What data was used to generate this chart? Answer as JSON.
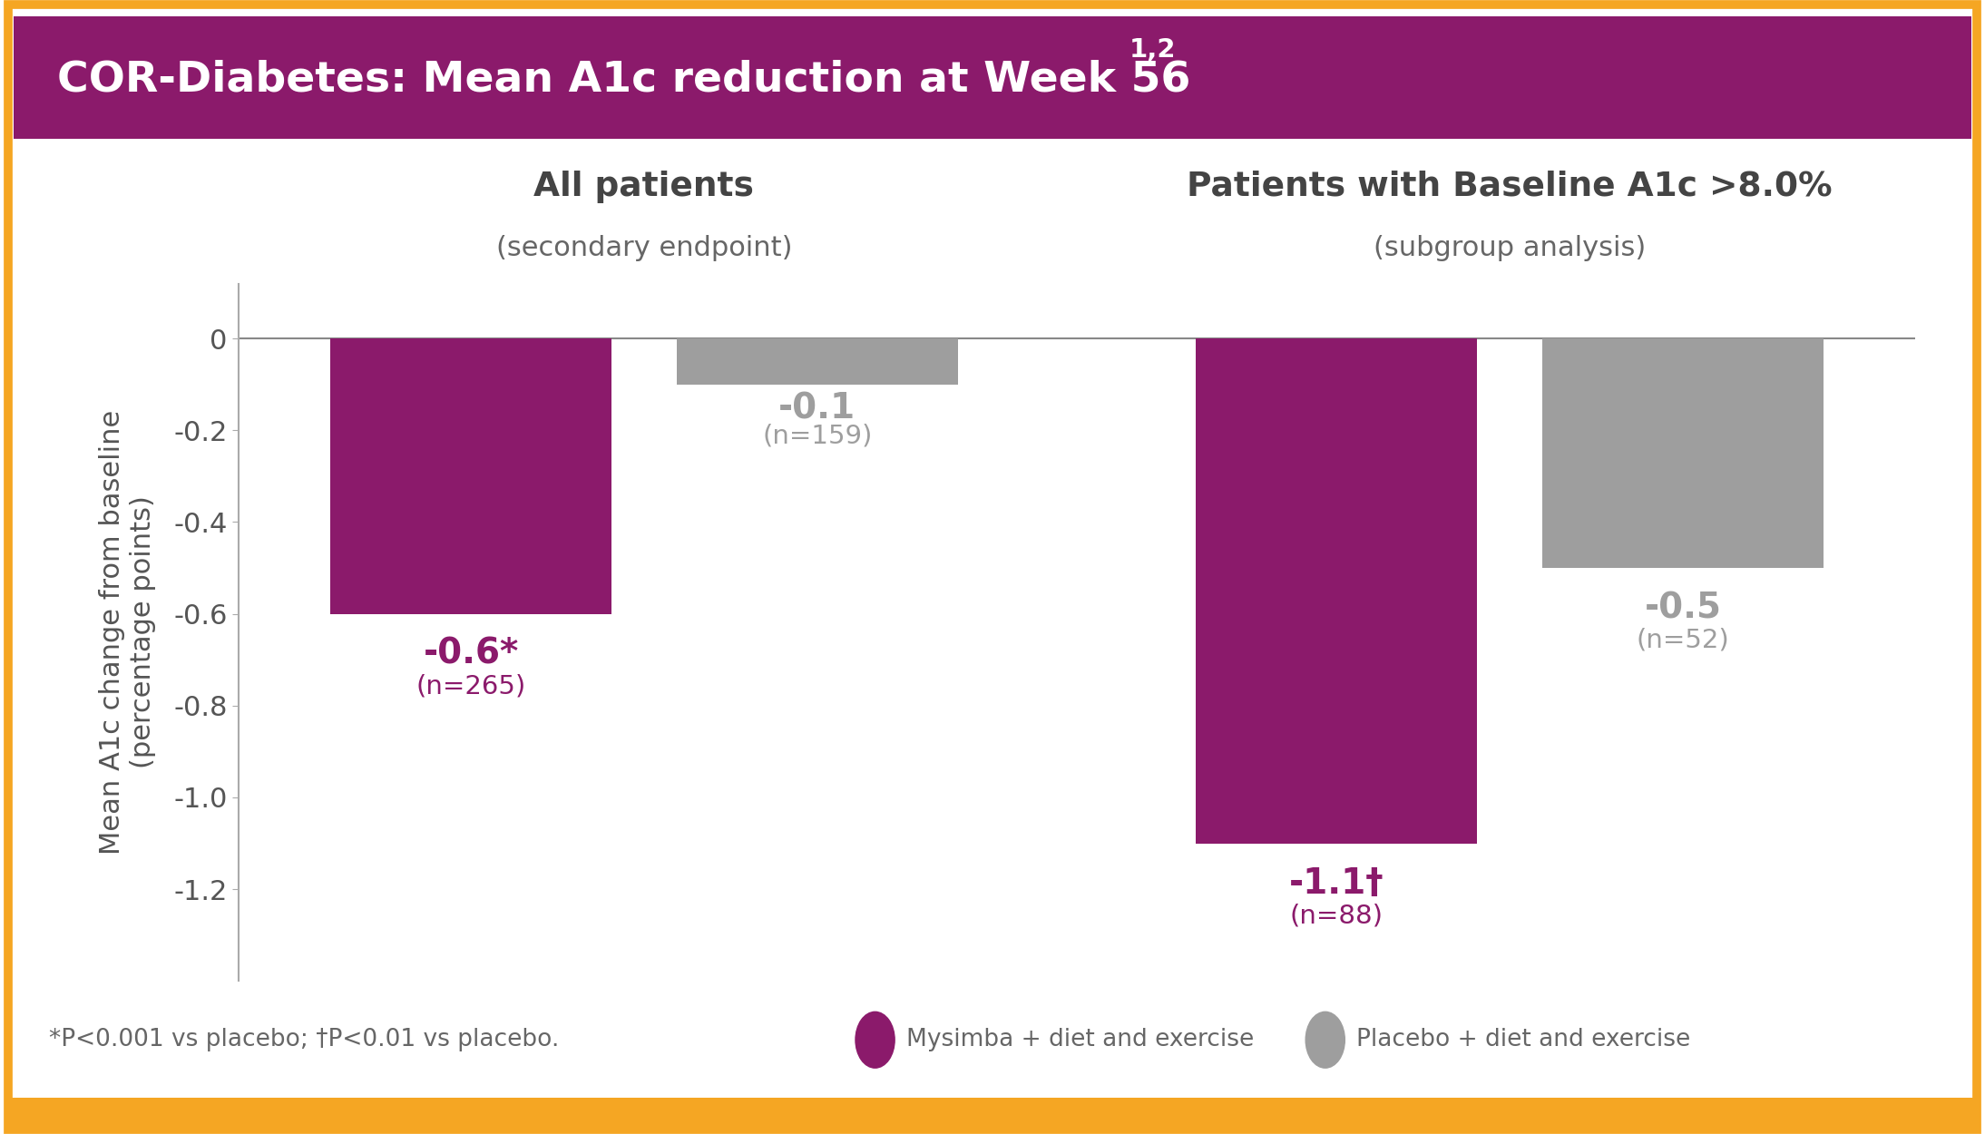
{
  "title": "COR-Diabetes: Mean A1c reduction at Week 56",
  "title_superscript": "1,2",
  "title_bg_color": "#8B1A6B",
  "title_text_color": "#FFFFFF",
  "border_color": "#F5A623",
  "background_color": "#FFFFFF",
  "ylabel": "Mean A1c change from baseline\n(percentage points)",
  "group_labels": [
    "All patients",
    "Patients with Baseline A1c >8.0%"
  ],
  "group_sublabels": [
    "(secondary endpoint)",
    "(subgroup analysis)"
  ],
  "bar_values": [
    -0.6,
    -0.1,
    -1.1,
    -0.5
  ],
  "bar_labels": [
    "-0.6*",
    "-0.1",
    "-1.1†",
    "-0.5"
  ],
  "bar_n_labels": [
    "(n=265)",
    "(n=159)",
    "(n=88)",
    "(n=52)"
  ],
  "bar_colors": [
    "#8B1A6B",
    "#9E9E9E",
    "#8B1A6B",
    "#9E9E9E"
  ],
  "bar_label_colors": [
    "#8B1A6B",
    "#9E9E9E",
    "#8B1A6B",
    "#9E9E9E"
  ],
  "ylim": [
    -1.4,
    0.12
  ],
  "yticks": [
    0,
    -0.2,
    -0.4,
    -0.6,
    -0.8,
    -1.0,
    -1.2
  ],
  "footnote": "*P<0.001 vs placebo; †P<0.01 vs placebo.",
  "legend_items": [
    "Mysimba + diet and exercise",
    "Placebo + diet and exercise"
  ],
  "legend_colors": [
    "#8B1A6B",
    "#9E9E9E"
  ],
  "group_positions": [
    1.0,
    2.6
  ],
  "bar_offsets": [
    -0.32,
    0.32
  ],
  "bar_width": 0.52,
  "xlim": [
    0.25,
    3.35
  ]
}
